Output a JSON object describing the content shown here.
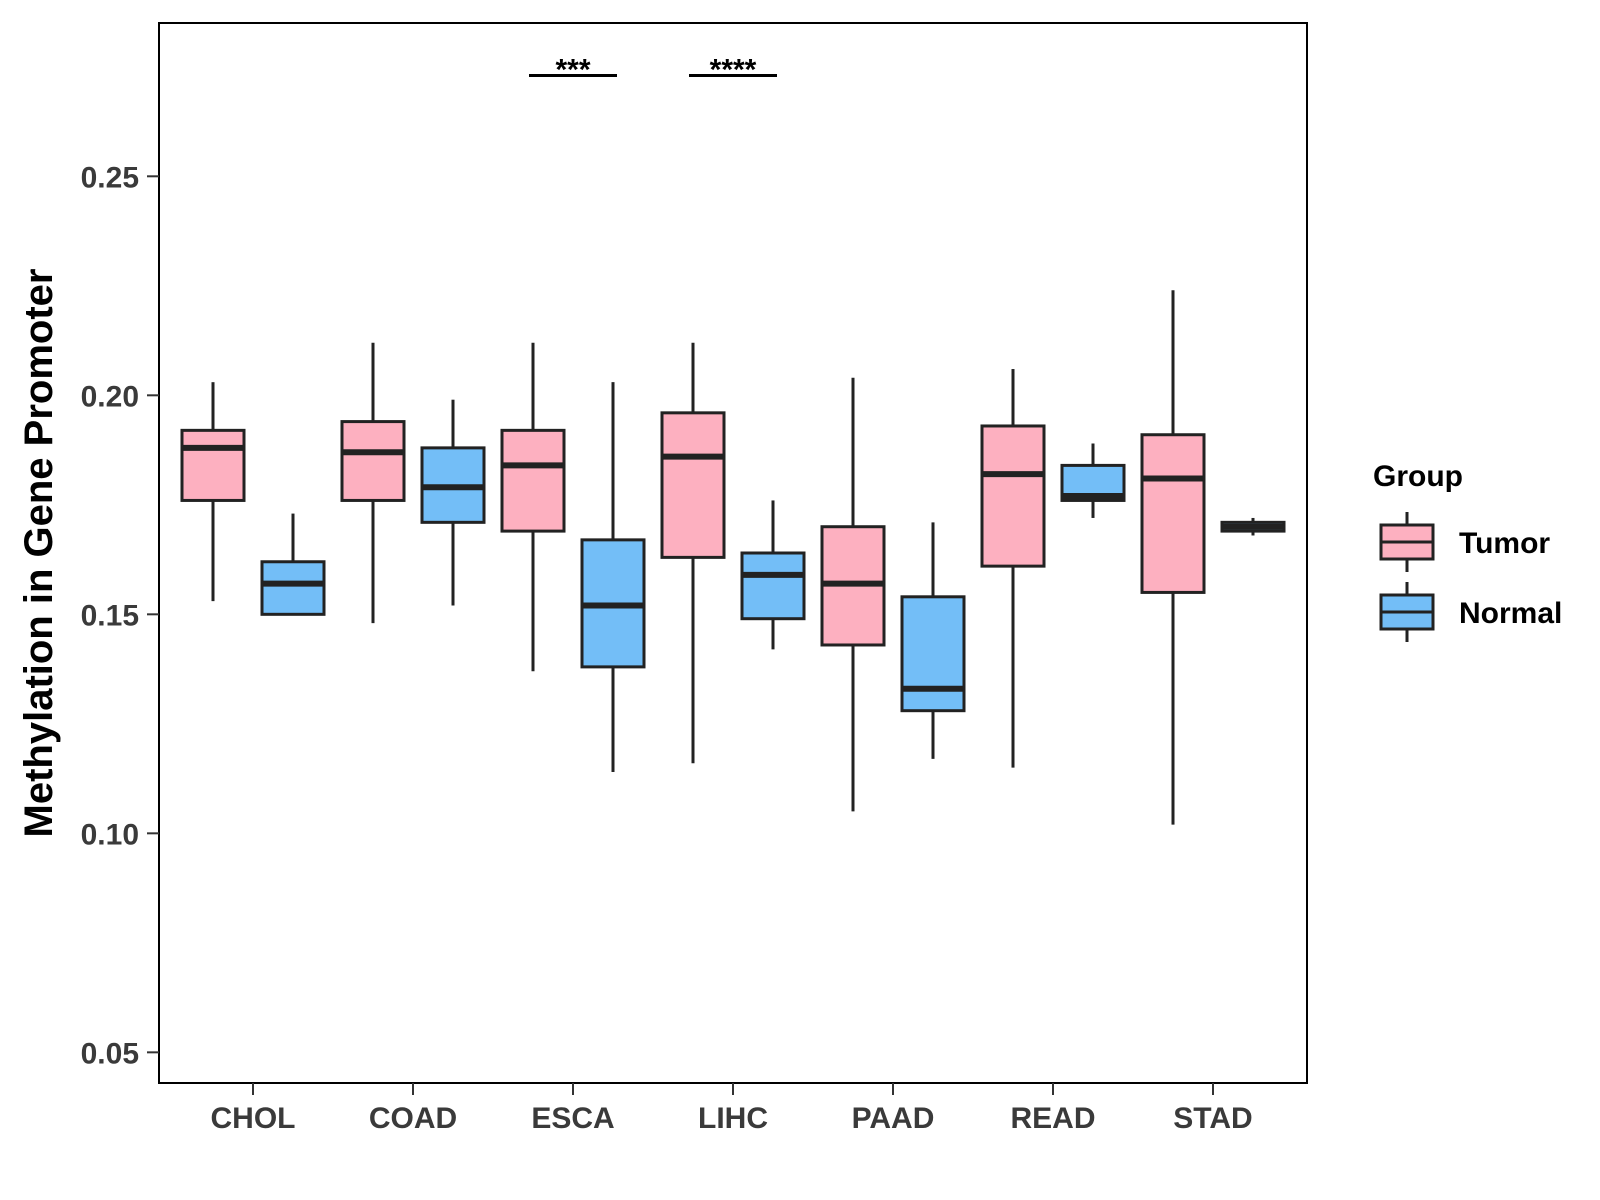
{
  "chart_data": {
    "type": "box",
    "title": "",
    "xlabel": "",
    "ylabel": "Methylation in Gene Promoter",
    "ylim": [
      0.043,
      0.285
    ],
    "yticks": [
      "0.05",
      "0.10",
      "0.15",
      "0.20",
      "0.25"
    ],
    "categories": [
      "CHOL",
      "COAD",
      "ESCA",
      "LIHC",
      "PAAD",
      "READ",
      "STAD"
    ],
    "legend": {
      "title": "Group",
      "position": "right",
      "items": [
        {
          "name": "Tumor",
          "color": "#FDB0C0"
        },
        {
          "name": "Normal",
          "color": "#73BEF7"
        }
      ]
    },
    "series": [
      {
        "name": "Tumor",
        "color": "#FDB0C0",
        "boxes": [
          {
            "category": "CHOL",
            "min": 0.153,
            "q1": 0.176,
            "median": 0.188,
            "q3": 0.192,
            "max": 0.203
          },
          {
            "category": "COAD",
            "min": 0.148,
            "q1": 0.176,
            "median": 0.187,
            "q3": 0.194,
            "max": 0.212
          },
          {
            "category": "ESCA",
            "min": 0.137,
            "q1": 0.169,
            "median": 0.184,
            "q3": 0.192,
            "max": 0.212
          },
          {
            "category": "LIHC",
            "min": 0.116,
            "q1": 0.163,
            "median": 0.186,
            "q3": 0.196,
            "max": 0.212
          },
          {
            "category": "PAAD",
            "min": 0.105,
            "q1": 0.143,
            "median": 0.157,
            "q3": 0.17,
            "max": 0.204
          },
          {
            "category": "READ",
            "min": 0.115,
            "q1": 0.161,
            "median": 0.182,
            "q3": 0.193,
            "max": 0.206
          },
          {
            "category": "STAD",
            "min": 0.102,
            "q1": 0.155,
            "median": 0.181,
            "q3": 0.191,
            "max": 0.224
          }
        ]
      },
      {
        "name": "Normal",
        "color": "#73BEF7",
        "boxes": [
          {
            "category": "CHOL",
            "min": 0.15,
            "q1": 0.15,
            "median": 0.157,
            "q3": 0.162,
            "max": 0.173
          },
          {
            "category": "COAD",
            "min": 0.152,
            "q1": 0.171,
            "median": 0.179,
            "q3": 0.188,
            "max": 0.199
          },
          {
            "category": "ESCA",
            "min": 0.114,
            "q1": 0.138,
            "median": 0.152,
            "q3": 0.167,
            "max": 0.203
          },
          {
            "category": "LIHC",
            "min": 0.142,
            "q1": 0.149,
            "median": 0.159,
            "q3": 0.164,
            "max": 0.176
          },
          {
            "category": "PAAD",
            "min": 0.117,
            "q1": 0.128,
            "median": 0.133,
            "q3": 0.154,
            "max": 0.171
          },
          {
            "category": "READ",
            "min": 0.172,
            "q1": 0.176,
            "median": 0.177,
            "q3": 0.184,
            "max": 0.189
          },
          {
            "category": "STAD",
            "min": 0.168,
            "q1": 0.169,
            "median": 0.17,
            "q3": 0.171,
            "max": 0.172
          }
        ]
      }
    ],
    "annotations": [
      {
        "category": "ESCA",
        "label": "***",
        "y": 0.273
      },
      {
        "category": "LIHC",
        "label": "****",
        "y": 0.273
      }
    ]
  }
}
